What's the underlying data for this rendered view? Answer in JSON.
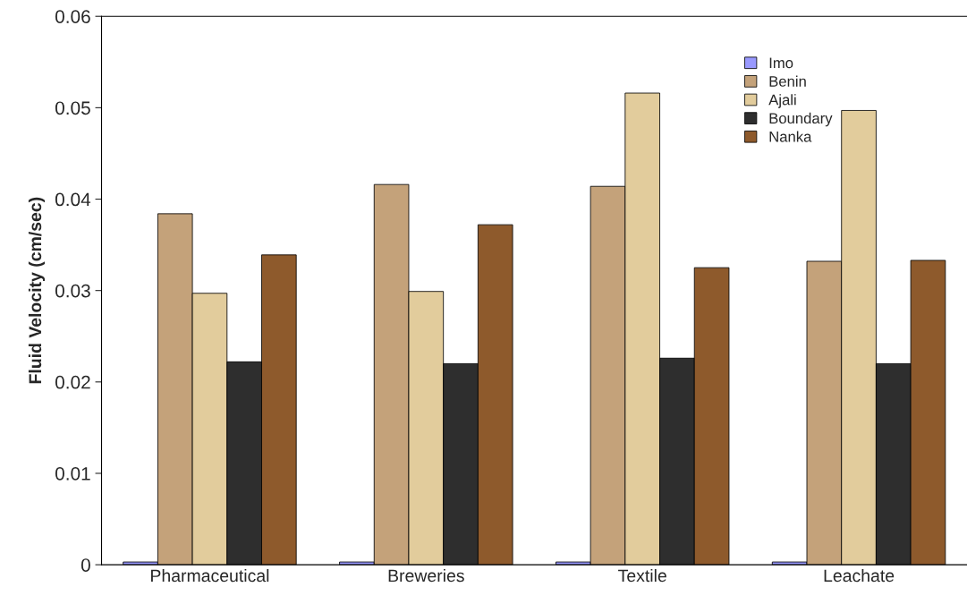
{
  "chart_data": {
    "type": "bar",
    "ylabel": "Fluid Velocity (cm/sec)",
    "categories": [
      "Pharmaceutical",
      "Breweries",
      "Textile",
      "Leachate"
    ],
    "series": [
      {
        "name": "Imo",
        "color": "#9999ff",
        "values": [
          0.0003,
          0.0003,
          0.0003,
          0.0003
        ]
      },
      {
        "name": "Benin",
        "color": "#c4a27a",
        "values": [
          0.0384,
          0.0416,
          0.0414,
          0.0332
        ]
      },
      {
        "name": "Ajali",
        "color": "#e2cc9c",
        "values": [
          0.0297,
          0.0299,
          0.0516,
          0.0497
        ]
      },
      {
        "name": "Boundary",
        "color": "#2e2e2e",
        "values": [
          0.0222,
          0.022,
          0.0226,
          0.022
        ]
      },
      {
        "name": "Nanka",
        "color": "#8e5a2c",
        "values": [
          0.0339,
          0.0372,
          0.0325,
          0.0333
        ]
      }
    ],
    "ylim": [
      0,
      0.06
    ],
    "yticks": [
      0,
      0.01,
      0.02,
      0.03,
      0.04,
      0.05,
      0.06
    ],
    "grid": false,
    "legend": "top right"
  }
}
